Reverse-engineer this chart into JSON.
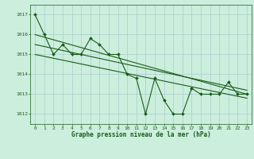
{
  "title": "Graphe pression niveau de la mer (hPa)",
  "bg_color": "#cceedd",
  "grid_color": "#aacccc",
  "line_color": "#1a5c1a",
  "xlim": [
    -0.5,
    23.5
  ],
  "ylim": [
    1011.5,
    1017.5
  ],
  "yticks": [
    1012,
    1013,
    1014,
    1015,
    1016,
    1017
  ],
  "xtick_labels": [
    "0",
    "1",
    "2",
    "3",
    "4",
    "5",
    "6",
    "7",
    "8",
    "9",
    "10",
    "11",
    "12",
    "13",
    "14",
    "15",
    "16",
    "17",
    "18",
    "19",
    "20",
    "21",
    "22",
    "23"
  ],
  "main_series_x": [
    0,
    1,
    2,
    3,
    4,
    5,
    6,
    7,
    8,
    9,
    10,
    11,
    12,
    13,
    14,
    15,
    16,
    17,
    18,
    19,
    20,
    21,
    22,
    23
  ],
  "main_series_y": [
    1017.0,
    1016.0,
    1015.0,
    1015.5,
    1015.0,
    1015.0,
    1015.8,
    1015.5,
    1015.0,
    1015.0,
    1014.0,
    1013.8,
    1012.0,
    1013.8,
    1012.7,
    1012.0,
    1012.0,
    1013.3,
    1013.0,
    1013.0,
    1013.0,
    1013.6,
    1013.0,
    1013.0
  ],
  "trend1_x": [
    0,
    23
  ],
  "trend1_y": [
    1016.0,
    1013.0
  ],
  "trend2_x": [
    0,
    23
  ],
  "trend2_y": [
    1015.5,
    1013.2
  ],
  "trend3_x": [
    0,
    23
  ],
  "trend3_y": [
    1015.0,
    1012.8
  ],
  "title_fontsize": 5.5,
  "tick_fontsize": 4.5,
  "lw": 0.8,
  "marker_size": 2.0
}
